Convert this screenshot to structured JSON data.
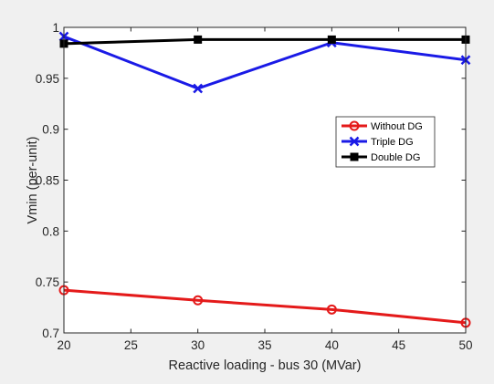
{
  "chart_data": {
    "type": "line",
    "title": "",
    "xlabel": "Reactive loading - bus 30 (MVar)",
    "ylabel": "Vmin (per-unit)",
    "xlim": [
      20,
      50
    ],
    "ylim": [
      0.7,
      1.0
    ],
    "xticks": [
      20,
      25,
      30,
      35,
      40,
      45,
      50
    ],
    "yticks": [
      0.7,
      0.75,
      0.8,
      0.85,
      0.9,
      0.95,
      1.0
    ],
    "xtick_labels": [
      "20",
      "25",
      "30",
      "35",
      "40",
      "45",
      "50"
    ],
    "ytick_labels": [
      "0.7",
      "0.75",
      "0.8",
      "0.85",
      "0.9",
      "0.95",
      "1"
    ],
    "x": [
      20,
      30,
      40,
      50
    ],
    "grid": false,
    "legend_position": "right",
    "series": [
      {
        "name": "Without DG",
        "values": [
          0.742,
          0.732,
          0.723,
          0.71
        ],
        "color": "#e41a1a",
        "marker": "circle"
      },
      {
        "name": "Triple DG",
        "values": [
          0.991,
          0.94,
          0.985,
          0.968
        ],
        "color": "#1a1ae6",
        "marker": "x"
      },
      {
        "name": "Double DG",
        "values": [
          0.984,
          0.988,
          0.988,
          0.988
        ],
        "color": "#000000",
        "marker": "square"
      }
    ]
  }
}
